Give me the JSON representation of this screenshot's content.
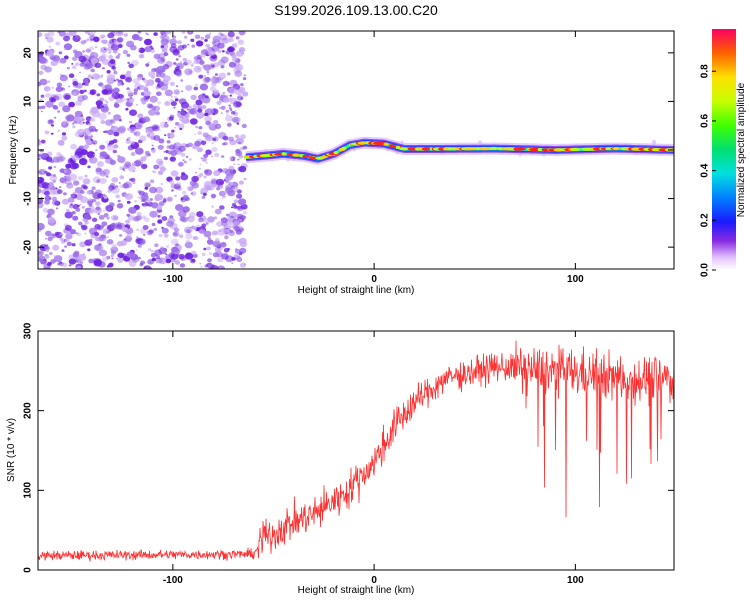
{
  "title": "S199.2026.109.13.00.C20",
  "colors": {
    "snr_line": "#ff3030",
    "ridge_core": "#ff2020",
    "noise": "#6a1fe0",
    "noise_light": "#c9a8f5"
  },
  "chart_data": [
    {
      "type": "heatmap",
      "name": "spectrogram",
      "xlabel": "Height of straight line (km)",
      "ylabel": "Frequency (Hz)",
      "xlim": [
        -167,
        149
      ],
      "ylim": [
        -24.5,
        24.5
      ],
      "xticks": [
        -100,
        0,
        100
      ],
      "yticks": [
        -20,
        -10,
        0,
        10,
        20
      ],
      "noise_region": [
        -167,
        -64
      ],
      "ridge": {
        "x": [
          -64,
          -55,
          -45,
          -35,
          -28,
          -20,
          -12,
          -5,
          5,
          15,
          30,
          60,
          90,
          120,
          149
        ],
        "freq": [
          -1.5,
          -1.2,
          -0.8,
          -1.2,
          -1.8,
          -0.8,
          1.0,
          1.5,
          1.3,
          0.2,
          0.2,
          0.3,
          0.0,
          0.3,
          0.0
        ]
      },
      "colorbar": {
        "label": "Normalized spectral amplitude",
        "range": [
          0,
          0.97
        ],
        "ticks": [
          0.0,
          0.2,
          0.4,
          0.6,
          0.8
        ]
      }
    },
    {
      "type": "line",
      "name": "snr",
      "xlabel": "Height of straight line (km)",
      "ylabel": "SNR (10 * v/v)",
      "xlim": [
        -167,
        149
      ],
      "ylim": [
        0,
        300
      ],
      "xticks": [
        -100,
        0,
        100
      ],
      "yticks": [
        0,
        100,
        200,
        300
      ],
      "trend": {
        "x": [
          -167,
          -60,
          -55,
          -45,
          -30,
          -15,
          0,
          10,
          20,
          35,
          60,
          90,
          110,
          130,
          149
        ],
        "y": [
          18,
          20,
          35,
          55,
          70,
          95,
          135,
          180,
          210,
          240,
          255,
          250,
          245,
          240,
          240
        ]
      }
    }
  ]
}
